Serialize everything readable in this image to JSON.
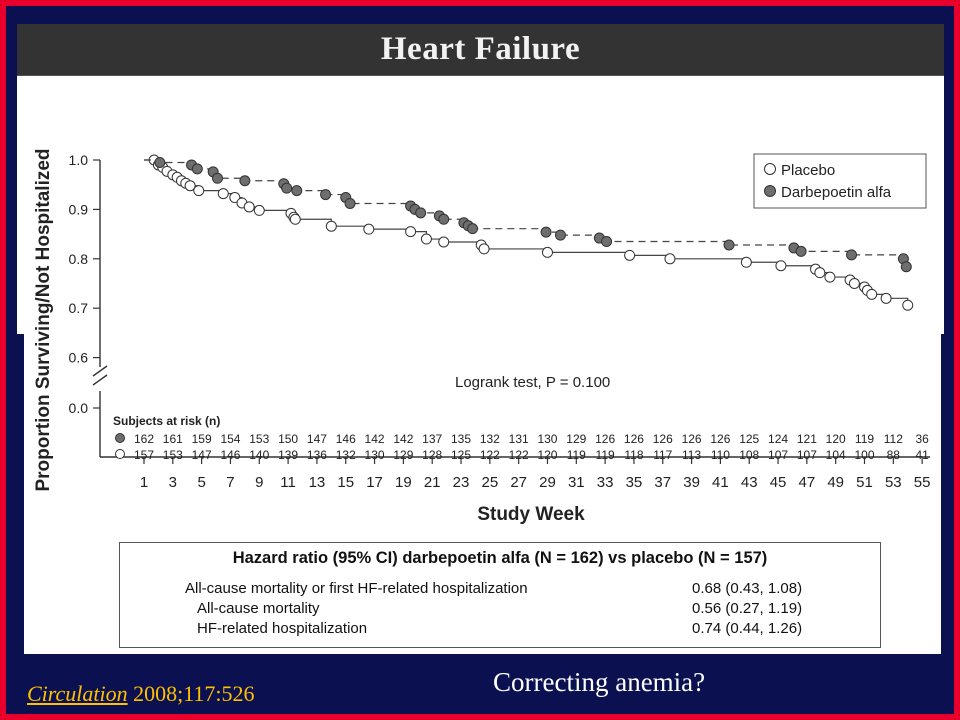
{
  "slide": {
    "title": "Heart Failure",
    "citation_journal": "Circulation",
    "citation_rest": " 2008;117:526",
    "caption": "Correcting anemia?"
  },
  "colors": {
    "background": "#0b1150",
    "border": "#e8002a",
    "citation": "#ffc000",
    "placebo_marker": "#ffffff",
    "darbepoetin_marker": "#6e6e6e"
  },
  "chart_data": {
    "type": "line",
    "subtype": "kaplan-meier-step",
    "ylabel": "Proportion Surviving/Not Hospitalized",
    "xlabel": "Study Week",
    "ylim": [
      0.0,
      1.0
    ],
    "y_axis_break": true,
    "y_ticks": [
      "1.0",
      "0.9",
      "0.8",
      "0.7",
      "0.6",
      "0.0"
    ],
    "x_ticks": [
      "1",
      "3",
      "5",
      "7",
      "9",
      "11",
      "13",
      "15",
      "17",
      "19",
      "21",
      "23",
      "25",
      "27",
      "29",
      "31",
      "33",
      "35",
      "37",
      "39",
      "41",
      "43",
      "45",
      "47",
      "49",
      "51",
      "53",
      "55"
    ],
    "legend": {
      "placement": "top-right",
      "entries": [
        "Placebo",
        "Darbepoetin alfa"
      ]
    },
    "annotation": "Logrank test, P = 0.100",
    "series": [
      {
        "name": "Placebo",
        "marker": "open-circle",
        "line": "solid",
        "points": [
          [
            1.7,
            1.0
          ],
          [
            2.0,
            0.99
          ],
          [
            2.3,
            0.985
          ],
          [
            2.6,
            0.977
          ],
          [
            3.0,
            0.97
          ],
          [
            3.3,
            0.965
          ],
          [
            3.6,
            0.958
          ],
          [
            3.9,
            0.953
          ],
          [
            4.2,
            0.948
          ],
          [
            4.8,
            0.938
          ],
          [
            6.5,
            0.932
          ],
          [
            7.3,
            0.924
          ],
          [
            7.8,
            0.913
          ],
          [
            8.3,
            0.905
          ],
          [
            9.0,
            0.898
          ],
          [
            11.2,
            0.892
          ],
          [
            11.4,
            0.884
          ],
          [
            11.5,
            0.88
          ],
          [
            14.0,
            0.866
          ],
          [
            16.6,
            0.86
          ],
          [
            19.5,
            0.855
          ],
          [
            20.6,
            0.84
          ],
          [
            21.8,
            0.834
          ],
          [
            24.4,
            0.828
          ],
          [
            24.6,
            0.82
          ],
          [
            29.0,
            0.813
          ],
          [
            34.7,
            0.807
          ],
          [
            37.5,
            0.8
          ],
          [
            42.8,
            0.793
          ],
          [
            45.2,
            0.786
          ],
          [
            47.6,
            0.779
          ],
          [
            47.9,
            0.772
          ],
          [
            48.6,
            0.763
          ],
          [
            50.0,
            0.757
          ],
          [
            50.3,
            0.75
          ],
          [
            51.0,
            0.743
          ],
          [
            51.2,
            0.736
          ],
          [
            51.5,
            0.728
          ],
          [
            52.5,
            0.72
          ],
          [
            54.0,
            0.706
          ]
        ]
      },
      {
        "name": "Darbepoetin alfa",
        "marker": "filled-circle",
        "line": "dashed",
        "points": [
          [
            2.1,
            0.995
          ],
          [
            4.3,
            0.99
          ],
          [
            4.7,
            0.982
          ],
          [
            5.8,
            0.976
          ],
          [
            6.1,
            0.963
          ],
          [
            8.0,
            0.958
          ],
          [
            10.7,
            0.952
          ],
          [
            10.9,
            0.943
          ],
          [
            11.6,
            0.938
          ],
          [
            13.6,
            0.93
          ],
          [
            15.0,
            0.924
          ],
          [
            15.3,
            0.912
          ],
          [
            19.5,
            0.907
          ],
          [
            19.8,
            0.9
          ],
          [
            20.2,
            0.893
          ],
          [
            21.5,
            0.887
          ],
          [
            21.8,
            0.88
          ],
          [
            23.2,
            0.873
          ],
          [
            23.5,
            0.867
          ],
          [
            23.8,
            0.861
          ],
          [
            28.9,
            0.854
          ],
          [
            29.9,
            0.848
          ],
          [
            32.6,
            0.842
          ],
          [
            33.1,
            0.835
          ],
          [
            41.6,
            0.828
          ],
          [
            46.1,
            0.822
          ],
          [
            46.6,
            0.815
          ],
          [
            50.1,
            0.808
          ],
          [
            53.7,
            0.8
          ],
          [
            53.9,
            0.784
          ]
        ]
      }
    ],
    "at_risk": {
      "title": "Subjects at risk (n)",
      "darbepoetin": [
        "162",
        "161",
        "159",
        "154",
        "153",
        "150",
        "147",
        "146",
        "142",
        "142",
        "137",
        "135",
        "132",
        "131",
        "130",
        "129",
        "126",
        "126",
        "126",
        "126",
        "126",
        "125",
        "124",
        "121",
        "120",
        "119",
        "112",
        "36"
      ],
      "placebo": [
        "157",
        "153",
        "147",
        "146",
        "140",
        "139",
        "136",
        "132",
        "130",
        "129",
        "128",
        "125",
        "122",
        "122",
        "120",
        "119",
        "119",
        "118",
        "117",
        "113",
        "110",
        "108",
        "107",
        "107",
        "104",
        "100",
        "88",
        "41"
      ]
    }
  },
  "hazard_table": {
    "title": "Hazard ratio (95% CI) darbepoetin alfa (N = 162) vs placebo (N = 157)",
    "rows": [
      {
        "label": "All-cause mortality or first HF-related hospitalization",
        "value": "0.68 (0.43, 1.08)"
      },
      {
        "label": "All-cause mortality",
        "value": "0.56 (0.27, 1.19)"
      },
      {
        "label": "HF-related hospitalization",
        "value": "0.74 (0.44, 1.26)"
      }
    ]
  }
}
